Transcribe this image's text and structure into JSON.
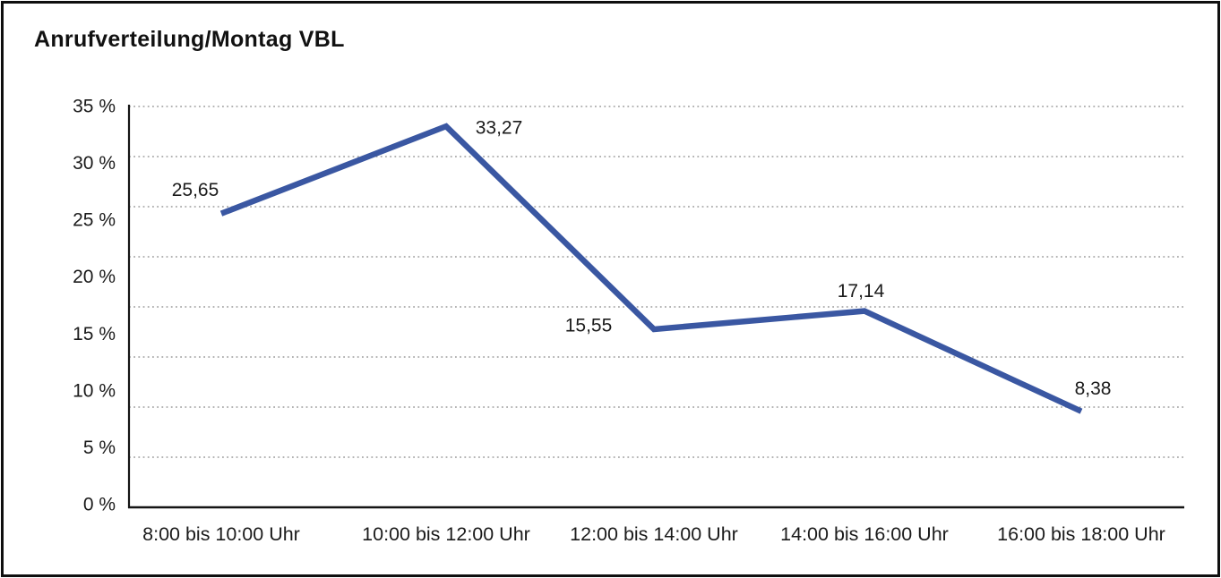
{
  "title": "Anrufverteilung/Montag VBL",
  "chart_data": {
    "type": "line",
    "title": "Anrufverteilung/Montag VBL",
    "categories": [
      "8:00 bis 10:00 Uhr",
      "10:00 bis 12:00 Uhr",
      "12:00 bis 14:00 Uhr",
      "14:00 bis 16:00 Uhr",
      "16:00 bis 18:00 Uhr"
    ],
    "values": [
      25.65,
      33.27,
      15.55,
      17.14,
      8.38
    ],
    "value_labels": [
      "25,65",
      "33,27",
      "15,55",
      "17,14",
      "8,38"
    ],
    "y_tick_labels": [
      "35 %",
      "30 %",
      "25 %",
      "20 %",
      "15 %",
      "10 %",
      "5 %",
      "0 %"
    ],
    "ylabel": "",
    "xlabel": "",
    "ylim": [
      0,
      35
    ],
    "grid": "horizontal-dotted",
    "legend": "none",
    "line_color": "#3A57A2",
    "grid_color": "#878787",
    "axis_color": "#141414",
    "text_color": "#1b1b1b"
  }
}
